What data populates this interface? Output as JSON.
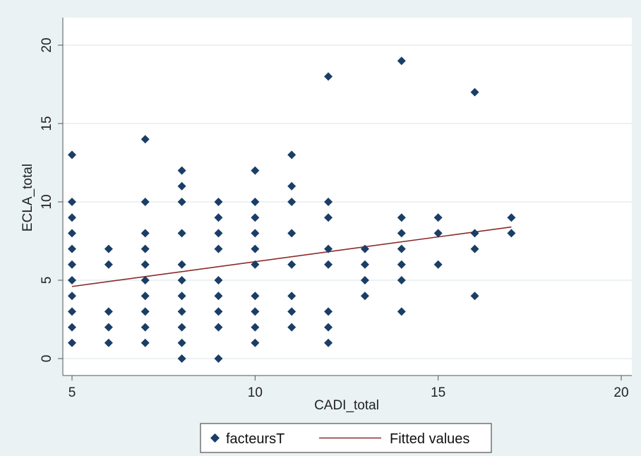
{
  "chart_data": {
    "type": "scatter",
    "title": "",
    "xlabel": "CADI_total",
    "ylabel": "ECLA_total",
    "xlim": [
      5,
      20
    ],
    "ylim": [
      0,
      20
    ],
    "x_ticks": [
      5,
      10,
      15,
      20
    ],
    "y_ticks": [
      0,
      5,
      10,
      15,
      20
    ],
    "grid": "horizontal",
    "legend_position": "bottom",
    "series": [
      {
        "name": "facteursT",
        "type": "scatter",
        "marker": "diamond",
        "color": "#1a3e66",
        "points": [
          [
            5,
            1
          ],
          [
            5,
            2
          ],
          [
            5,
            3
          ],
          [
            5,
            4
          ],
          [
            5,
            5
          ],
          [
            5,
            6
          ],
          [
            5,
            7
          ],
          [
            5,
            8
          ],
          [
            5,
            9
          ],
          [
            5,
            10
          ],
          [
            5,
            13
          ],
          [
            6,
            1
          ],
          [
            6,
            2
          ],
          [
            6,
            3
          ],
          [
            6,
            6
          ],
          [
            6,
            7
          ],
          [
            7,
            1
          ],
          [
            7,
            2
          ],
          [
            7,
            3
          ],
          [
            7,
            4
          ],
          [
            7,
            5
          ],
          [
            7,
            6
          ],
          [
            7,
            7
          ],
          [
            7,
            8
          ],
          [
            7,
            10
          ],
          [
            7,
            14
          ],
          [
            8,
            0
          ],
          [
            8,
            1
          ],
          [
            8,
            2
          ],
          [
            8,
            3
          ],
          [
            8,
            4
          ],
          [
            8,
            5
          ],
          [
            8,
            6
          ],
          [
            8,
            8
          ],
          [
            8,
            10
          ],
          [
            8,
            11
          ],
          [
            8,
            12
          ],
          [
            9,
            0
          ],
          [
            9,
            2
          ],
          [
            9,
            3
          ],
          [
            9,
            4
          ],
          [
            9,
            5
          ],
          [
            9,
            7
          ],
          [
            9,
            8
          ],
          [
            9,
            9
          ],
          [
            9,
            10
          ],
          [
            10,
            1
          ],
          [
            10,
            2
          ],
          [
            10,
            3
          ],
          [
            10,
            4
          ],
          [
            10,
            6
          ],
          [
            10,
            7
          ],
          [
            10,
            8
          ],
          [
            10,
            9
          ],
          [
            10,
            10
          ],
          [
            10,
            12
          ],
          [
            11,
            2
          ],
          [
            11,
            3
          ],
          [
            11,
            4
          ],
          [
            11,
            6
          ],
          [
            11,
            8
          ],
          [
            11,
            10
          ],
          [
            11,
            11
          ],
          [
            11,
            13
          ],
          [
            12,
            1
          ],
          [
            12,
            2
          ],
          [
            12,
            3
          ],
          [
            12,
            6
          ],
          [
            12,
            7
          ],
          [
            12,
            9
          ],
          [
            12,
            10
          ],
          [
            12,
            18
          ],
          [
            13,
            4
          ],
          [
            13,
            5
          ],
          [
            13,
            6
          ],
          [
            13,
            7
          ],
          [
            14,
            3
          ],
          [
            14,
            5
          ],
          [
            14,
            6
          ],
          [
            14,
            7
          ],
          [
            14,
            8
          ],
          [
            14,
            9
          ],
          [
            14,
            19
          ],
          [
            15,
            6
          ],
          [
            15,
            8
          ],
          [
            15,
            9
          ],
          [
            16,
            4
          ],
          [
            16,
            7
          ],
          [
            16,
            8
          ],
          [
            16,
            17
          ],
          [
            17,
            8
          ],
          [
            17,
            9
          ]
        ]
      },
      {
        "name": "Fitted values",
        "type": "line",
        "color": "#8b2a2a",
        "x": [
          5,
          17
        ],
        "y": [
          4.6,
          8.4
        ]
      }
    ]
  }
}
